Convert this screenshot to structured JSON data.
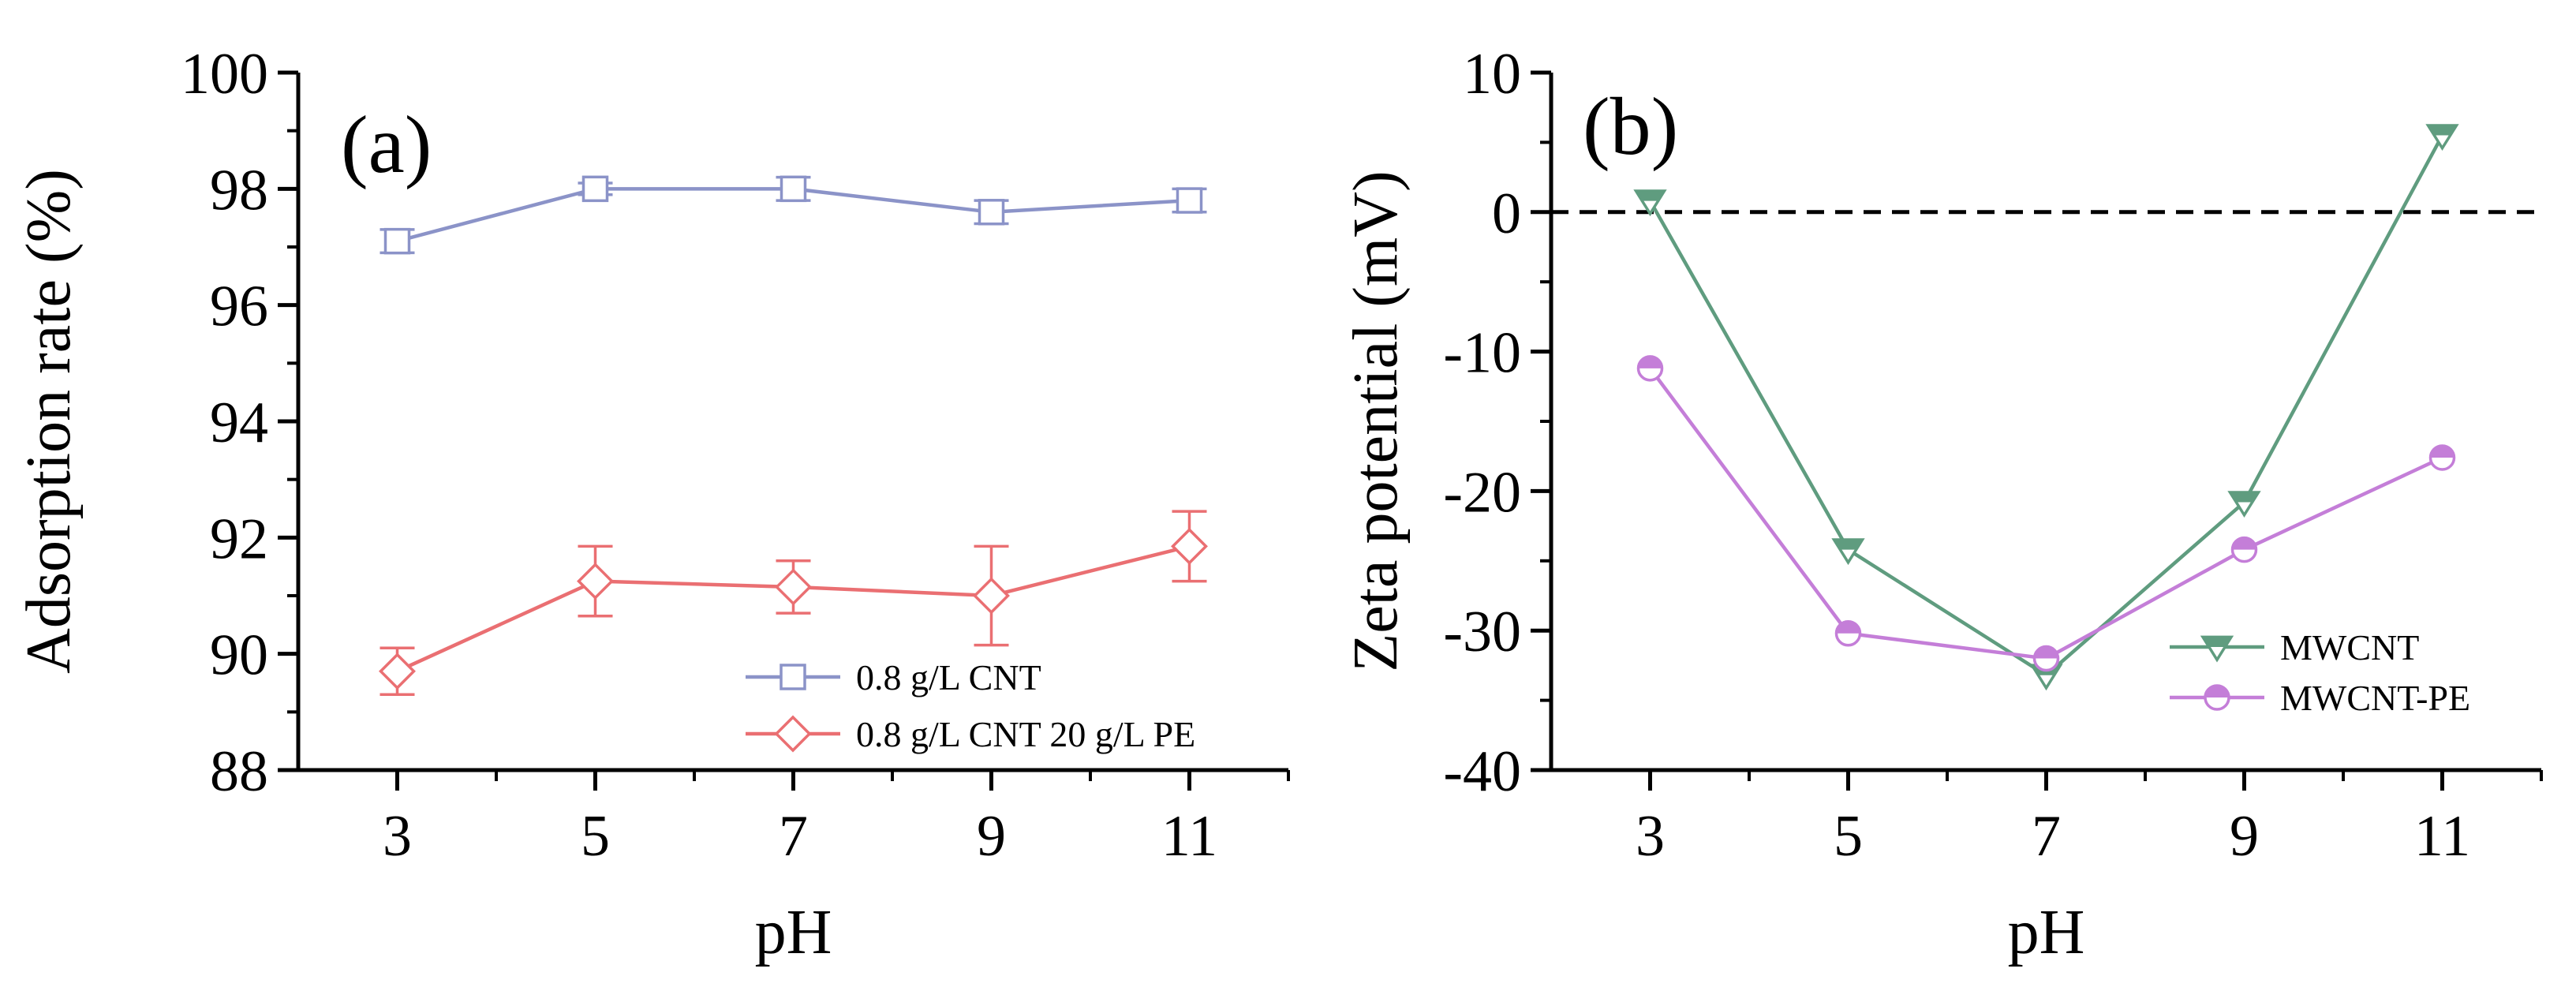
{
  "colors": {
    "cnt": "#8b93c8",
    "cnt_pe": "#ea6f72",
    "mwcnt": "#5f9c7f",
    "mwcnt_pe": "#c47ed8",
    "axis": "#000000"
  },
  "chart_data": [
    {
      "type": "line",
      "panel_label": "(a)",
      "xlabel": "pH",
      "ylabel": "Adsorption rate (%)",
      "x": [
        3,
        5,
        7,
        9,
        11
      ],
      "xticks": [
        "3",
        "5",
        "7",
        "9",
        "11"
      ],
      "xlim": [
        2,
        12
      ],
      "ylim": [
        88,
        100
      ],
      "yticks": [
        "88",
        "90",
        "92",
        "94",
        "96",
        "98",
        "100"
      ],
      "legend_position": "bottom-right",
      "series": [
        {
          "name": "0.8 g/L CNT",
          "marker": "square",
          "color_key": "cnt",
          "values": [
            97.1,
            98.0,
            98.0,
            97.6,
            97.8
          ],
          "errors": [
            0.2,
            0.1,
            0.2,
            0.2,
            0.2
          ]
        },
        {
          "name": "0.8 g/L CNT 20 g/L PE",
          "marker": "diamond",
          "color_key": "cnt_pe",
          "values": [
            89.7,
            91.25,
            91.15,
            91.0,
            91.85
          ],
          "errors": [
            0.4,
            0.6,
            0.45,
            0.85,
            0.6
          ]
        }
      ]
    },
    {
      "type": "line",
      "panel_label": "(b)",
      "xlabel": "pH",
      "ylabel": "Zeta potential (mV)",
      "x": [
        3,
        5,
        7,
        9,
        11
      ],
      "xticks": [
        "3",
        "5",
        "7",
        "9",
        "11"
      ],
      "xlim": [
        2,
        12
      ],
      "ylim": [
        -40,
        10
      ],
      "yticks": [
        "-40",
        "-30",
        "-20",
        "-10",
        "0",
        "10"
      ],
      "reference_line": 0,
      "legend_position": "bottom-right",
      "series": [
        {
          "name": "MWCNT",
          "marker": "triangle-down",
          "color_key": "mwcnt",
          "values": [
            0.8,
            -24.2,
            -33.2,
            -20.8,
            5.5
          ]
        },
        {
          "name": "MWCNT-PE",
          "marker": "half-circle",
          "color_key": "mwcnt_pe",
          "values": [
            -11.2,
            -30.2,
            -32.0,
            -24.2,
            -17.6
          ]
        }
      ]
    }
  ]
}
